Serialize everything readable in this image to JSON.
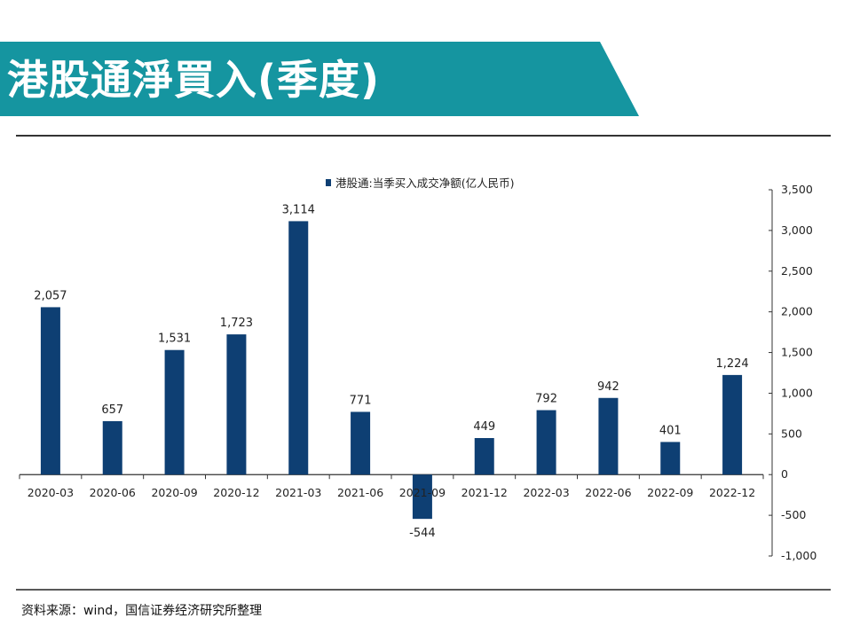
{
  "slide": {
    "title": "港股通淨買入(季度)",
    "source": "资料来源：wind，国信证券经济研究所整理",
    "accent_color": "#1595a0",
    "bar_color": "#0e3f73"
  },
  "chart_data": {
    "type": "bar",
    "title": "",
    "xlabel": "",
    "ylabel": "",
    "categories": [
      "2020-03",
      "2020-06",
      "2020-09",
      "2020-12",
      "2021-03",
      "2021-06",
      "2021-09",
      "2021-12",
      "2022-03",
      "2022-06",
      "2022-09",
      "2022-12"
    ],
    "series": [
      {
        "name": "港股通:当季买入成交净额(亿人民币)",
        "values": [
          2057,
          657,
          1531,
          1723,
          3114,
          771,
          -544,
          449,
          792,
          942,
          401,
          1224
        ],
        "labels": [
          "2,057",
          "657",
          "1,531",
          "1,723",
          "3,114",
          "771",
          "-544",
          "449",
          "792",
          "942",
          "401",
          "1,224"
        ]
      }
    ],
    "ylim": [
      -1000,
      3500
    ],
    "yticks": [
      -1000,
      -500,
      0,
      500,
      1000,
      1500,
      2000,
      2500,
      3000,
      3500
    ],
    "ytick_labels": [
      "-1,000",
      "-500",
      "0",
      "500",
      "1,000",
      "1,500",
      "2,000",
      "2,500",
      "3,000",
      "3,500"
    ],
    "y_axis_side": "right",
    "grid": false,
    "legend_position": "top-center"
  }
}
